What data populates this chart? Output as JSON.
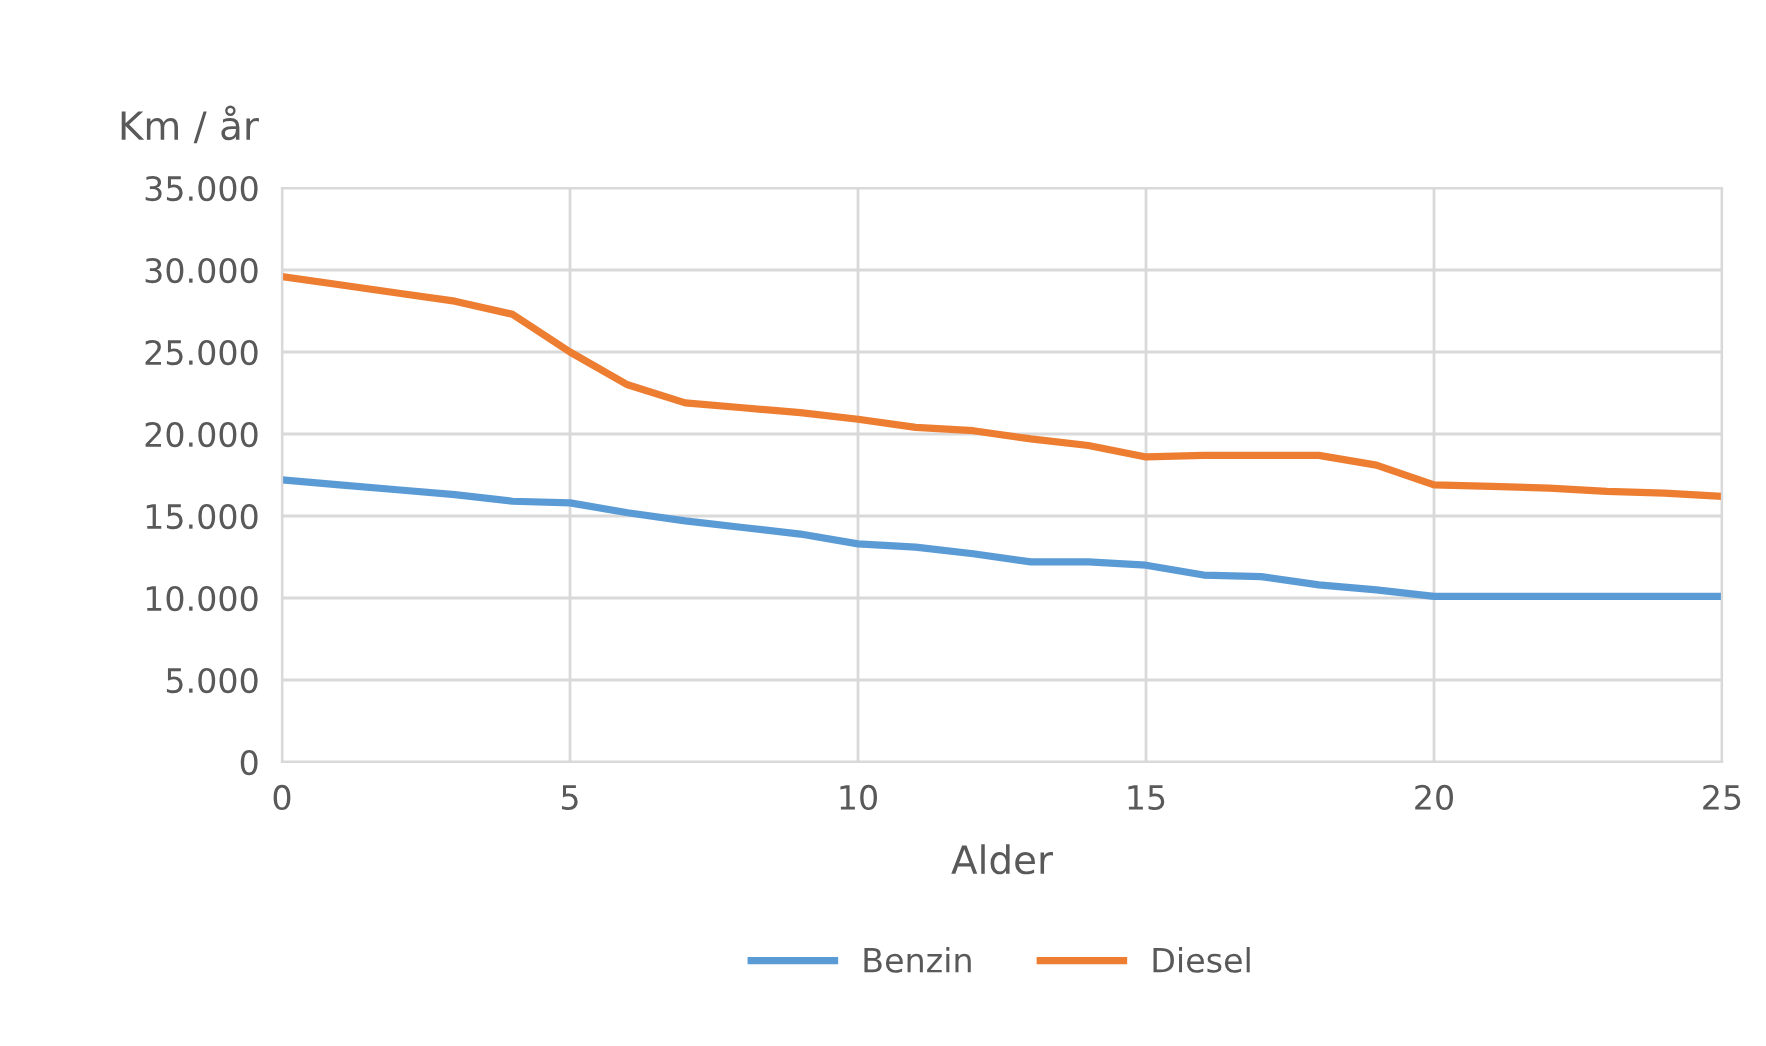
{
  "chart_data": {
    "type": "line",
    "xlabel": "Alder",
    "ylabel": "Km / år",
    "x": [
      0,
      1,
      2,
      3,
      4,
      5,
      6,
      7,
      8,
      9,
      10,
      11,
      12,
      13,
      14,
      15,
      16,
      17,
      18,
      19,
      20,
      21,
      22,
      23,
      24,
      25
    ],
    "series": [
      {
        "name": "Benzin",
        "color": "#5b9bd5",
        "values": [
          17200,
          16900,
          16600,
          16300,
          15900,
          15800,
          15200,
          14700,
          14300,
          13900,
          13300,
          13100,
          12700,
          12200,
          12200,
          12000,
          11400,
          11300,
          10800,
          10500,
          10100,
          10100,
          10100,
          10100,
          10100,
          10100
        ]
      },
      {
        "name": "Diesel",
        "color": "#ed7d31",
        "values": [
          29600,
          29100,
          28600,
          28100,
          27300,
          25000,
          23000,
          21900,
          21600,
          21300,
          20900,
          20400,
          20200,
          19700,
          19300,
          18600,
          18700,
          18700,
          18700,
          18100,
          16900,
          16800,
          16700,
          16500,
          16400,
          16200
        ]
      }
    ],
    "xlim": [
      0,
      25
    ],
    "xticks": [
      0,
      5,
      10,
      15,
      20,
      25
    ],
    "ylim": [
      0,
      35000
    ],
    "yticks": [
      0,
      {
        "value": 5000,
        "label": "5.000"
      },
      {
        "value": 10000,
        "label": "10.000"
      },
      {
        "value": 15000,
        "label": "15.000"
      },
      {
        "value": 20000,
        "label": "20.000"
      },
      {
        "value": 25000,
        "label": "25.000"
      },
      {
        "value": 30000,
        "label": "30.000"
      },
      {
        "value": 35000,
        "label": "35.000"
      }
    ],
    "grid": true,
    "legend": "bottom",
    "marker": "none",
    "line_style": "solid"
  }
}
